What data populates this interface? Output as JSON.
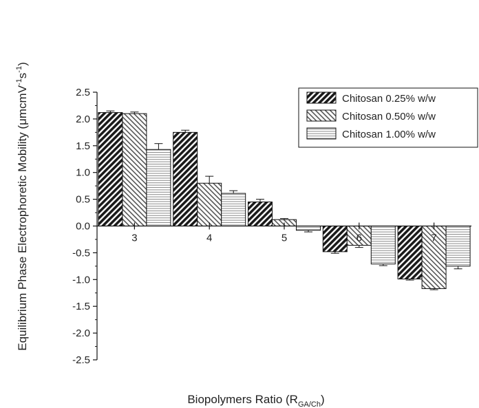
{
  "chart_data": {
    "type": "bar",
    "ylabel_main": "Equilibrium Phase Electrophoretic Mobility (μmcmV",
    "ylabel_sup1": "-1",
    "ylabel_mid": "s",
    "ylabel_sup2": "-1",
    "ylabel_end": ")",
    "xlabel_main": "Biopolymers Ratio (R",
    "xlabel_sub": "GA/Ch",
    "xlabel_end": ")",
    "categories": [
      "3",
      "4",
      "5",
      "6",
      "7"
    ],
    "ylim": [
      -2.5,
      2.5
    ],
    "yticks": [
      "2.5",
      "2.0",
      "1.5",
      "1.0",
      "0.5",
      "0.0",
      "-0.5",
      "-1.0",
      "-1.5",
      "-2.0",
      "-2.5"
    ],
    "legend_position": "top-right",
    "series": [
      {
        "name": "Chitosan 0.25% w/w",
        "pattern": "diagonal-dense",
        "values": [
          2.12,
          1.75,
          0.45,
          -0.48,
          -0.99
        ],
        "errors": [
          0.03,
          0.04,
          0.05,
          0.03,
          0.02
        ]
      },
      {
        "name": "Chitosan 0.50% w/w",
        "pattern": "diagonal-light",
        "values": [
          2.1,
          0.8,
          0.12,
          -0.36,
          -1.17
        ],
        "errors": [
          0.03,
          0.13,
          0.02,
          0.04,
          0.02
        ]
      },
      {
        "name": "Chitosan 1.00% w/w",
        "pattern": "horizontal",
        "values": [
          1.43,
          0.61,
          -0.08,
          -0.71,
          -0.75
        ],
        "errors": [
          0.11,
          0.05,
          0.03,
          0.03,
          0.05
        ]
      }
    ]
  }
}
